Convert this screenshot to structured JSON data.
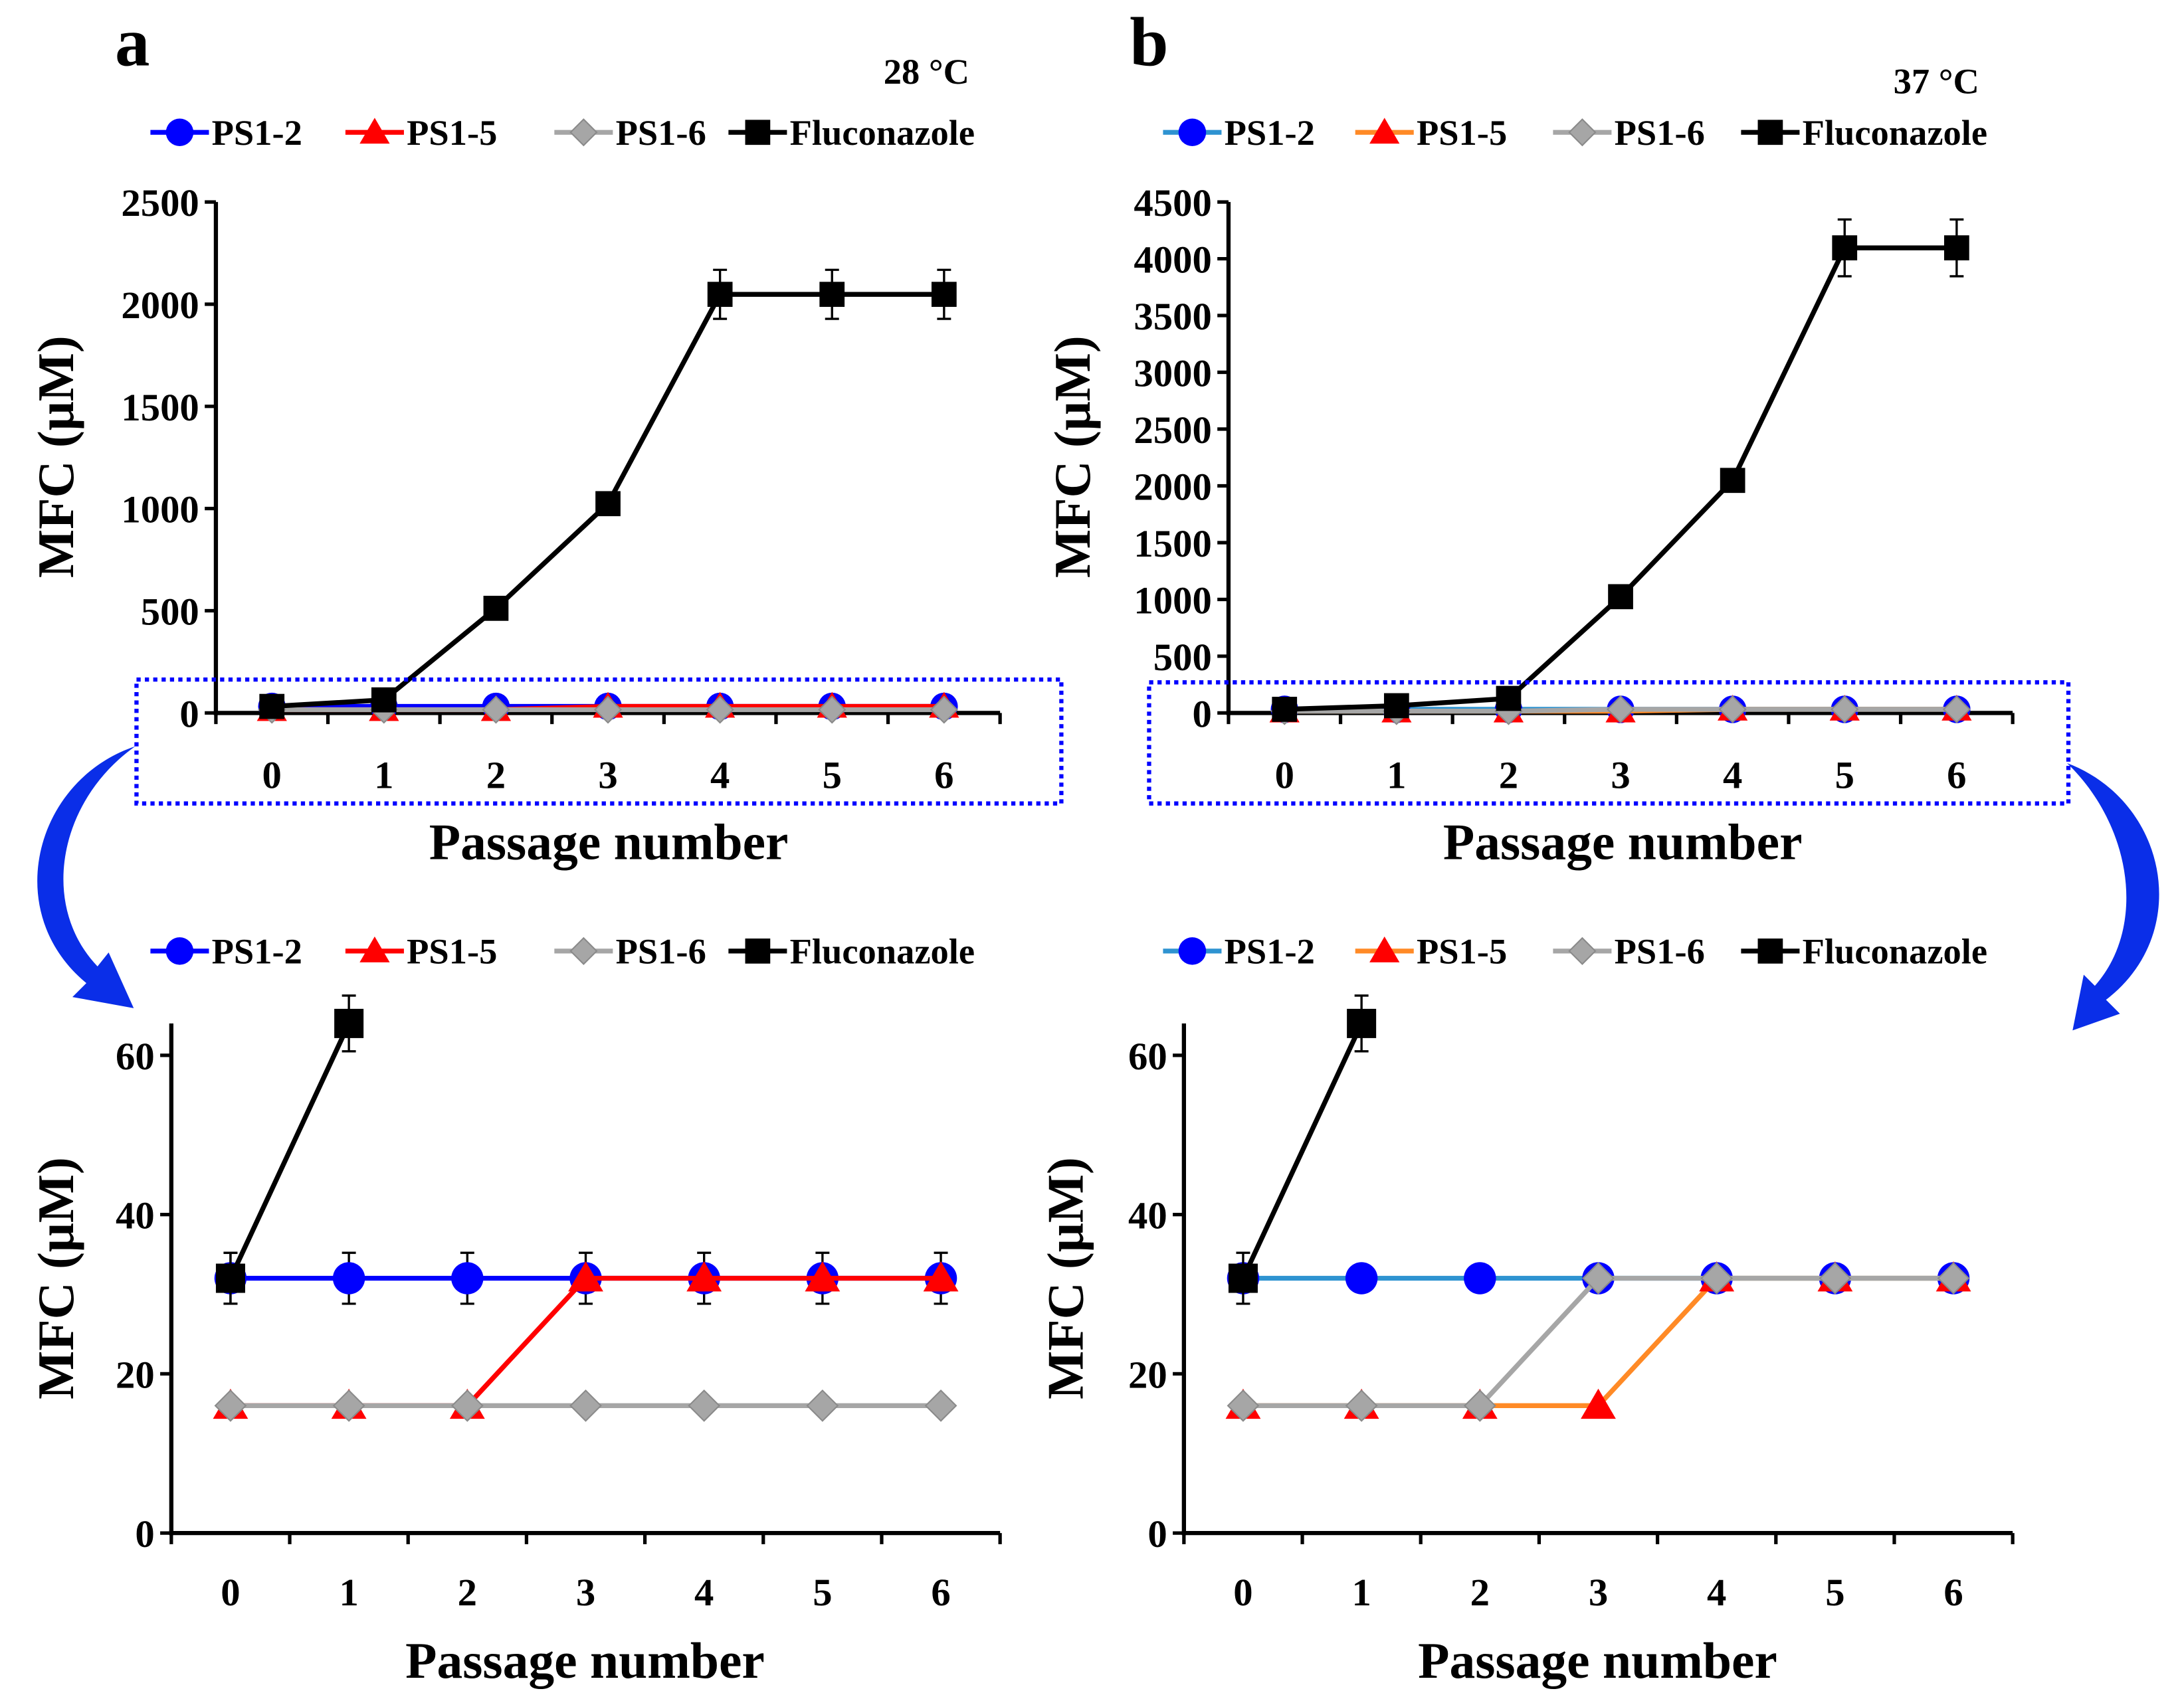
{
  "panels": {
    "a": {
      "label": "a",
      "temperature": "28 °C"
    },
    "b": {
      "label": "b",
      "temperature": "37 °C"
    }
  },
  "chart_data": [
    {
      "type": "line",
      "title": "",
      "xlabel": "Passage number",
      "ylabel": "MFC (μM)",
      "categories": [
        "0",
        "1",
        "2",
        "3",
        "4",
        "5",
        "6"
      ],
      "ylim": [
        0,
        2500
      ],
      "yticks": [
        0,
        500,
        1000,
        1500,
        2000,
        2500
      ],
      "grid": false,
      "legend": "top",
      "series": [
        {
          "name": "PS1-2",
          "values": [
            32,
            32,
            32,
            32,
            32,
            32,
            32
          ],
          "line_color": "#0000ff",
          "marker": "circle",
          "marker_color": "#0000ff"
        },
        {
          "name": "PS1-5",
          "values": [
            16,
            16,
            16,
            32,
            32,
            32,
            32
          ],
          "line_color": "#ff0000",
          "marker": "triangle",
          "marker_color": "#ff0000"
        },
        {
          "name": "PS1-6",
          "values": [
            16,
            16,
            16,
            16,
            16,
            16,
            16
          ],
          "line_color": "#a6a6a6",
          "marker": "diamond",
          "marker_color": "#a6a6a6"
        },
        {
          "name": "Fluconazole",
          "values": [
            32,
            64,
            512,
            1024,
            2048,
            2048,
            2048
          ],
          "errors": [
            0,
            0,
            0,
            0,
            120,
            120,
            120
          ],
          "line_color": "#000000",
          "marker": "square",
          "marker_color": "#000000"
        }
      ]
    },
    {
      "type": "line",
      "title": "",
      "xlabel": "Passage number",
      "ylabel": "MFC (μM)",
      "categories": [
        "0",
        "1",
        "2",
        "3",
        "4",
        "5",
        "6"
      ],
      "ylim": [
        0,
        4500
      ],
      "yticks": [
        0,
        500,
        1000,
        1500,
        2000,
        2500,
        3000,
        3500,
        4000,
        4500
      ],
      "grid": false,
      "legend": "top",
      "series": [
        {
          "name": "PS1-2",
          "values": [
            32,
            32,
            32,
            32,
            32,
            32,
            32
          ],
          "line_color": "#2e93d1",
          "marker": "circle",
          "marker_color": "#0000ff"
        },
        {
          "name": "PS1-5",
          "values": [
            16,
            16,
            16,
            16,
            32,
            32,
            32
          ],
          "line_color": "#ff8a26",
          "marker": "triangle",
          "marker_color": "#ff0000"
        },
        {
          "name": "PS1-6",
          "values": [
            16,
            16,
            16,
            32,
            32,
            32,
            32
          ],
          "line_color": "#a6a6a6",
          "marker": "diamond",
          "marker_color": "#a6a6a6"
        },
        {
          "name": "Fluconazole",
          "values": [
            32,
            64,
            128,
            1024,
            2048,
            4096,
            4096
          ],
          "errors": [
            0,
            0,
            0,
            0,
            0,
            250,
            250
          ],
          "line_color": "#000000",
          "marker": "square",
          "marker_color": "#000000"
        }
      ]
    },
    {
      "type": "line",
      "title": "",
      "xlabel": "Passage number",
      "ylabel": "MFC (μM)",
      "categories": [
        "0",
        "1",
        "2",
        "3",
        "4",
        "5",
        "6"
      ],
      "ylim": [
        0,
        64
      ],
      "yticks": [
        0,
        20,
        40,
        60
      ],
      "grid": false,
      "legend": "top",
      "series": [
        {
          "name": "PS1-2",
          "values": [
            32,
            32,
            32,
            32,
            32,
            32,
            32
          ],
          "errors": [
            3.2,
            3.2,
            3.2,
            3.2,
            3.2,
            3.2,
            3.2
          ],
          "line_color": "#0000ff",
          "marker": "circle",
          "marker_color": "#0000ff"
        },
        {
          "name": "PS1-5",
          "values": [
            16,
            16,
            16,
            32,
            32,
            32,
            32
          ],
          "line_color": "#ff0000",
          "marker": "triangle",
          "marker_color": "#ff0000"
        },
        {
          "name": "PS1-6",
          "values": [
            16,
            16,
            16,
            16,
            16,
            16,
            16
          ],
          "line_color": "#a6a6a6",
          "marker": "diamond",
          "marker_color": "#a6a6a6"
        },
        {
          "name": "Fluconazole",
          "values": [
            32,
            64,
            null,
            null,
            null,
            null,
            null
          ],
          "errors": [
            3.2,
            3.5,
            0,
            0,
            0,
            0,
            0
          ],
          "line_color": "#000000",
          "marker": "square",
          "marker_color": "#000000"
        }
      ]
    },
    {
      "type": "line",
      "title": "",
      "xlabel": "Passage number",
      "ylabel": "MFC (μM)",
      "categories": [
        "0",
        "1",
        "2",
        "3",
        "4",
        "5",
        "6"
      ],
      "ylim": [
        0,
        64
      ],
      "yticks": [
        0,
        20,
        40,
        60
      ],
      "grid": false,
      "legend": "top",
      "series": [
        {
          "name": "PS1-2",
          "values": [
            32,
            32,
            32,
            32,
            32,
            32,
            32
          ],
          "line_color": "#2e93d1",
          "marker": "circle",
          "marker_color": "#0000ff"
        },
        {
          "name": "PS1-5",
          "values": [
            16,
            16,
            16,
            16,
            32,
            32,
            32
          ],
          "line_color": "#ff8a26",
          "marker": "triangle",
          "marker_color": "#ff0000"
        },
        {
          "name": "PS1-6",
          "values": [
            16,
            16,
            16,
            32,
            32,
            32,
            32
          ],
          "line_color": "#a6a6a6",
          "marker": "diamond",
          "marker_color": "#a6a6a6"
        },
        {
          "name": "Fluconazole",
          "values": [
            32,
            64,
            null,
            null,
            null,
            null,
            null
          ],
          "errors": [
            3.2,
            3.5,
            0,
            0,
            0,
            0,
            0
          ],
          "line_color": "#000000",
          "marker": "square",
          "marker_color": "#000000"
        }
      ]
    }
  ]
}
